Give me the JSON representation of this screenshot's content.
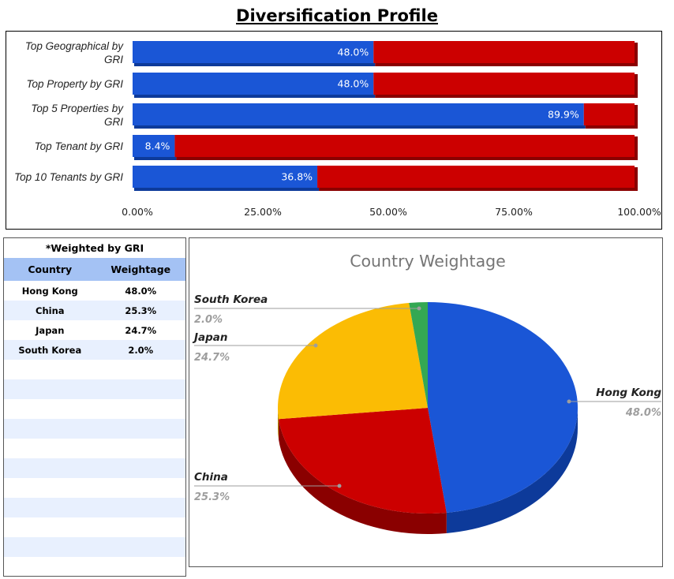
{
  "title": "Diversification Profile",
  "colors": {
    "blue": "#1a56d6",
    "blue_dark": "#0d3a9a",
    "red": "#cc0000",
    "red_dark": "#8a0000",
    "yellow": "#fbbc04",
    "green": "#34a853",
    "header_bg": "#a4c2f4",
    "band_bg": "#e8f0fe"
  },
  "table": {
    "note": "*Weighted by GRI",
    "headers": [
      "Country",
      "Weightage"
    ],
    "rows": [
      [
        "Hong Kong",
        "48.0%"
      ],
      [
        "China",
        "25.3%"
      ],
      [
        "Japan",
        "24.7%"
      ],
      [
        "South Korea",
        "2.0%"
      ]
    ],
    "empty_rows": 11
  },
  "chart_data": [
    {
      "type": "bar",
      "orientation": "horizontal",
      "stacked": true,
      "title": "",
      "categories": [
        "Top Geographical by GRI",
        "Top Property by GRI",
        "Top 5 Properties by GRI",
        "Top Tenant by GRI",
        "Top 10 Tenants by GRI"
      ],
      "series": [
        {
          "values": [
            48.0,
            48.0,
            89.9,
            8.4,
            36.8
          ]
        },
        {
          "values": [
            52.0,
            52.0,
            10.1,
            91.6,
            63.2
          ]
        }
      ],
      "data_labels": [
        "48.0%",
        "48.0%",
        "89.9%",
        "8.4%",
        "36.8%"
      ],
      "xlim": [
        0,
        100
      ],
      "xticks": [
        "0.00%",
        "25.00%",
        "50.00%",
        "75.00%",
        "100.00%"
      ],
      "grid": false,
      "legend": "none"
    },
    {
      "type": "pie",
      "title": "Country Weightage",
      "slices": [
        {
          "label": "Hong Kong",
          "value": 48.0,
          "display": "48.0%",
          "color": "#1a56d6"
        },
        {
          "label": "China",
          "value": 25.3,
          "display": "25.3%",
          "color": "#cc0000"
        },
        {
          "label": "Japan",
          "value": 24.7,
          "display": "24.7%",
          "color": "#fbbc04"
        },
        {
          "label": "South Korea",
          "value": 2.0,
          "display": "2.0%",
          "color": "#34a853"
        }
      ],
      "legend": "labels"
    }
  ]
}
